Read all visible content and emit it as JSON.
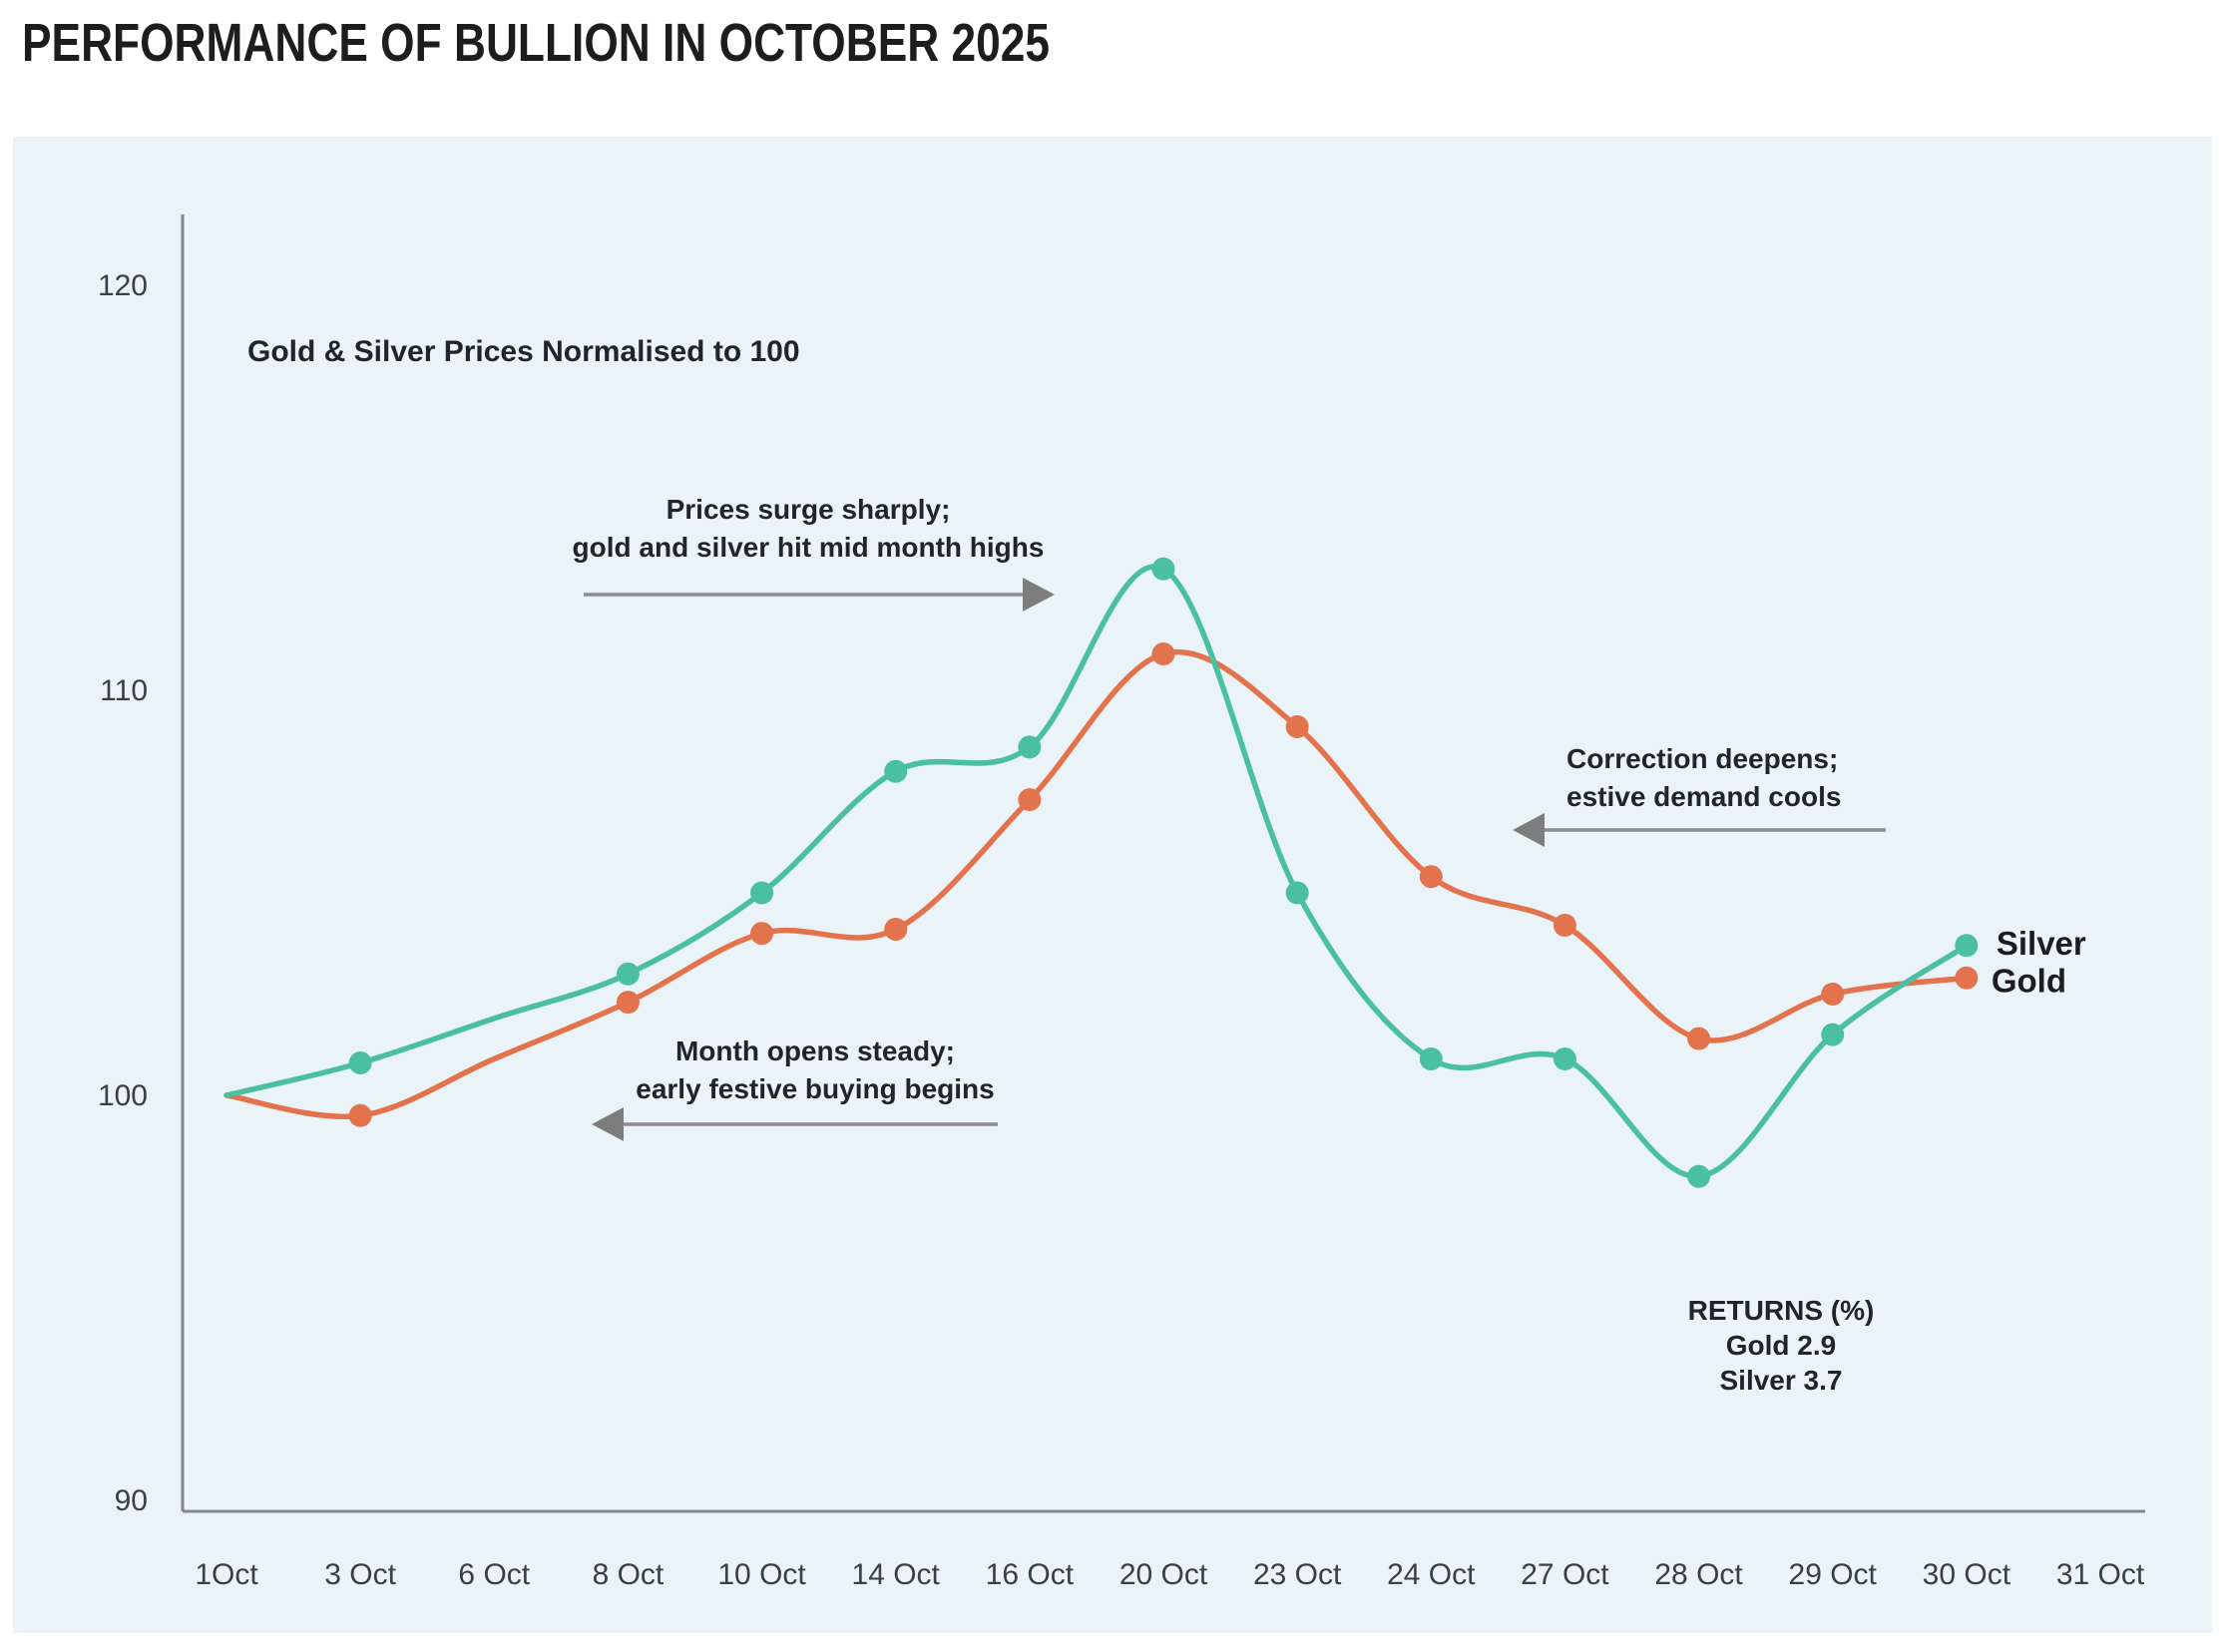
{
  "page_title": "PERFORMANCE OF BULLION IN OCTOBER 2025",
  "colors": {
    "panel_bg": "#EAF3F8",
    "silver": "#4BBFA2",
    "gold": "#E2734C",
    "axis": "#85888B",
    "tick_text": "#3B3F42",
    "annotation_text": "#222528",
    "arrow": "#8C8C8C",
    "arrow_head": "#7D7D7D",
    "title_text": "#1D1D1F"
  },
  "chart_data": {
    "type": "line",
    "title": "PERFORMANCE OF BULLION IN OCTOBER 2025",
    "subtitle": "Gold & Silver Prices Normalised to 100",
    "xlabel": "",
    "ylabel": "",
    "categories": [
      "1Oct",
      "3 Oct",
      "6 Oct",
      "8 Oct",
      "10 Oct",
      "14 Oct",
      "16 Oct",
      "20 Oct",
      "23 Oct",
      "24 Oct",
      "27 Oct",
      "28 Oct",
      "29 Oct",
      "30 Oct",
      "31 Oct"
    ],
    "y_ticks": [
      90,
      100,
      110,
      120
    ],
    "ylim": [
      89.7,
      121.7
    ],
    "grid": false,
    "legend_position": "end-of-line-labels",
    "series": [
      {
        "name": "Gold",
        "color": "#E2734C",
        "values": [
          100.0,
          99.5,
          100.9,
          102.3,
          104.0,
          104.1,
          107.3,
          110.9,
          109.1,
          105.4,
          104.2,
          101.4,
          102.5,
          102.9,
          null
        ],
        "markers": [
          false,
          true,
          false,
          true,
          true,
          true,
          true,
          true,
          true,
          true,
          true,
          true,
          true,
          true,
          false
        ],
        "end_label": "Gold",
        "label_dx": 25,
        "label_dy": 14
      },
      {
        "name": "Silver",
        "color": "#4BBFA2",
        "values": [
          100.0,
          100.8,
          101.9,
          103.0,
          105.0,
          108.0,
          108.6,
          113.0,
          105.0,
          100.9,
          100.9,
          98.0,
          101.5,
          103.7,
          null
        ],
        "markers": [
          false,
          true,
          false,
          true,
          true,
          true,
          true,
          true,
          true,
          true,
          true,
          true,
          true,
          true,
          false
        ],
        "end_label": "Silver",
        "label_dx": 30,
        "label_dy": 9
      }
    ],
    "annotations": [
      {
        "id": "surge",
        "lines": [
          "Prices surge sharply;",
          "gold and silver hit mid month highs"
        ],
        "align": "center",
        "x": 810,
        "y": 520,
        "line_height": 38,
        "arrow": {
          "x1": 585,
          "x2": 1025,
          "y": 596,
          "dir": "right"
        }
      },
      {
        "id": "steady",
        "lines": [
          "Month opens steady;",
          "early festive buying begins"
        ],
        "align": "center",
        "x": 817,
        "y": 1063,
        "line_height": 38,
        "arrow": {
          "x1": 625,
          "x2": 1000,
          "y": 1127,
          "dir": "left"
        }
      },
      {
        "id": "correction",
        "lines": [
          "Correction deepens;",
          "estive demand cools"
        ],
        "align": "left",
        "x": 1570,
        "y": 770,
        "line_height": 38,
        "arrow": {
          "x1": 1548,
          "x2": 1890,
          "y": 832,
          "dir": "left"
        }
      }
    ],
    "returns_block": {
      "x": 1785,
      "y": 1323,
      "line_height": 35,
      "lines": [
        "RETURNS (%)",
        "Gold 2.9",
        "Silver 3.7"
      ]
    }
  }
}
